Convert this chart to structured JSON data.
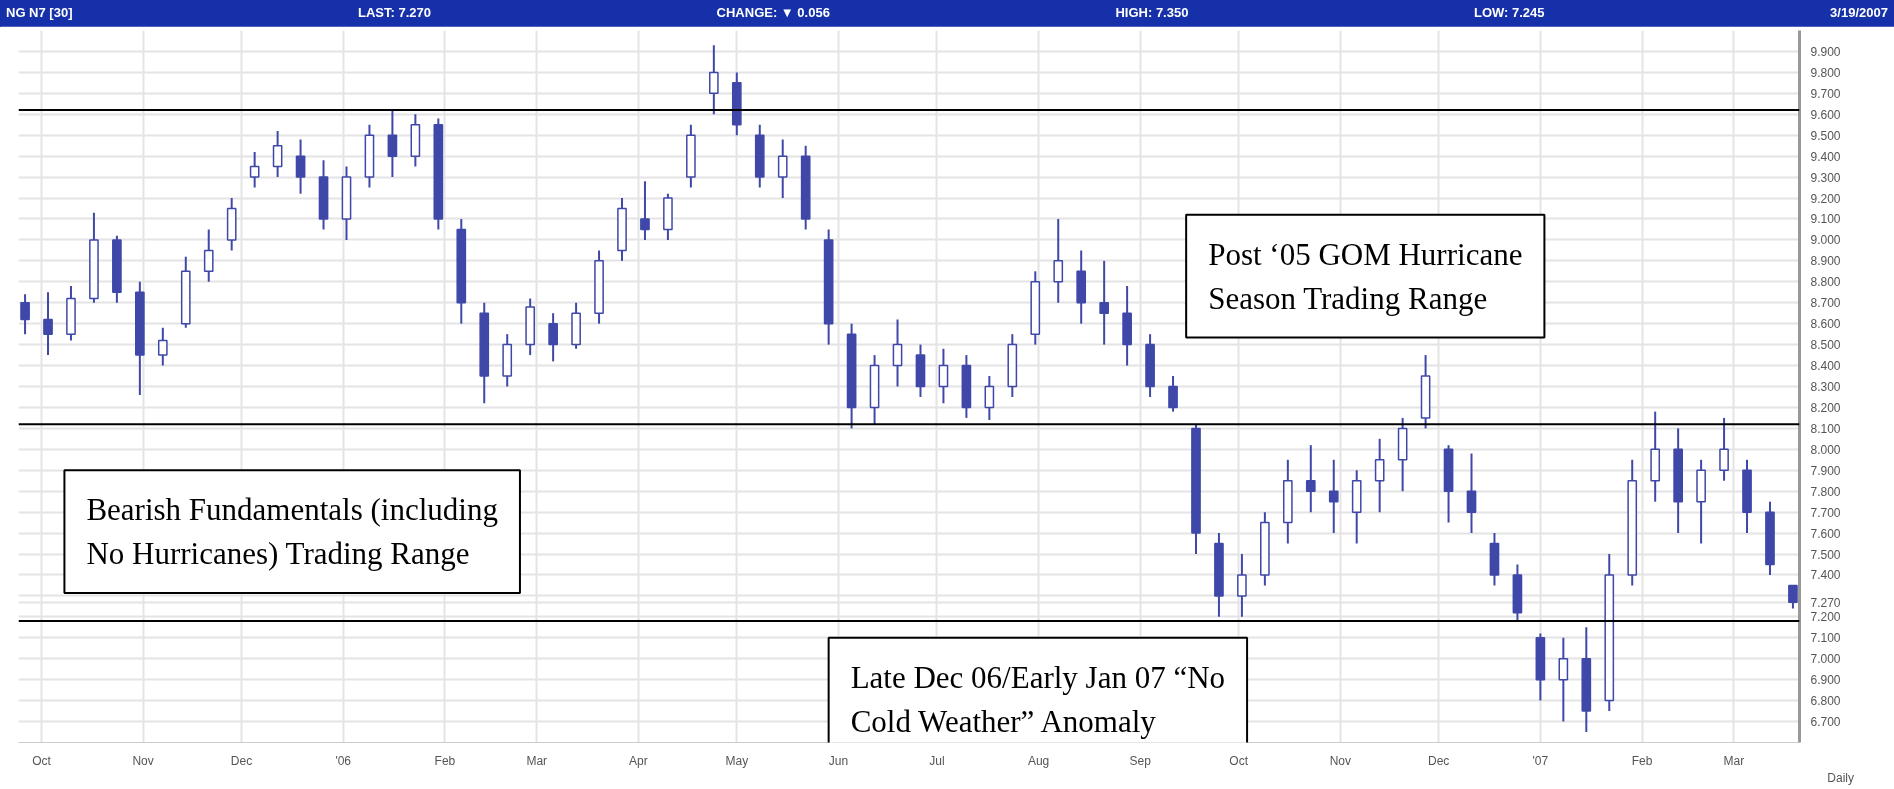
{
  "chart_data": {
    "type": "candlestick",
    "title": "NG N7 [30]",
    "annotations": [
      "LAST: 7.270",
      "CHANGE: ▼ 0.056",
      "HIGH: 7.350",
      "LOW: 7.245",
      "3/19/2007",
      "Daily",
      "Post ‘05 GOM Hurricane Season Trading Range",
      "Bearish Fundamentals (including No Hurricanes) Trading Range",
      "Late Dec 06/Early Jan 07 “No Cold Weather” Anomaly"
    ],
    "x": [
      "2005-09-26",
      "2005-10-03",
      "2005-10-10",
      "2005-10-17",
      "2005-10-24",
      "2005-10-31",
      "2005-11-07",
      "2005-11-14",
      "2005-11-21",
      "2005-11-28",
      "2005-12-05",
      "2005-12-12",
      "2005-12-19",
      "2005-12-26",
      "2006-01-02",
      "2006-01-09",
      "2006-01-16",
      "2006-01-23",
      "2006-01-30",
      "2006-02-06",
      "2006-02-13",
      "2006-02-20",
      "2006-02-27",
      "2006-03-06",
      "2006-03-13",
      "2006-03-20",
      "2006-03-27",
      "2006-04-03",
      "2006-04-10",
      "2006-04-17",
      "2006-04-24",
      "2006-05-01",
      "2006-05-08",
      "2006-05-15",
      "2006-05-22",
      "2006-05-29",
      "2006-06-05",
      "2006-06-12",
      "2006-06-19",
      "2006-06-26",
      "2006-07-03",
      "2006-07-10",
      "2006-07-17",
      "2006-07-24",
      "2006-07-31",
      "2006-08-07",
      "2006-08-14",
      "2006-08-21",
      "2006-08-28",
      "2006-09-04",
      "2006-09-11",
      "2006-09-18",
      "2006-09-25",
      "2006-10-02",
      "2006-10-09",
      "2006-10-16",
      "2006-10-23",
      "2006-10-30",
      "2006-11-06",
      "2006-11-13",
      "2006-11-20",
      "2006-11-27",
      "2006-12-04",
      "2006-12-11",
      "2006-12-18",
      "2006-12-25",
      "2007-01-01",
      "2007-01-08",
      "2007-01-15",
      "2007-01-22",
      "2007-01-29",
      "2007-02-05",
      "2007-02-12",
      "2007-02-19",
      "2007-02-26",
      "2007-03-05",
      "2007-03-12",
      "2007-03-19"
    ],
    "ohlc": [
      [
        8.7,
        8.74,
        8.55,
        8.62
      ],
      [
        8.62,
        8.75,
        8.45,
        8.55
      ],
      [
        8.55,
        8.78,
        8.52,
        8.72
      ],
      [
        8.72,
        9.13,
        8.7,
        9.0
      ],
      [
        9.0,
        9.02,
        8.7,
        8.75
      ],
      [
        8.75,
        8.8,
        8.26,
        8.45
      ],
      [
        8.45,
        8.58,
        8.4,
        8.52
      ],
      [
        8.6,
        8.92,
        8.58,
        8.85
      ],
      [
        8.85,
        9.05,
        8.8,
        8.95
      ],
      [
        9.0,
        9.2,
        8.95,
        9.15
      ],
      [
        9.3,
        9.42,
        9.25,
        9.35
      ],
      [
        9.35,
        9.52,
        9.3,
        9.45
      ],
      [
        9.4,
        9.48,
        9.22,
        9.3
      ],
      [
        9.3,
        9.38,
        9.05,
        9.1
      ],
      [
        9.1,
        9.35,
        9.0,
        9.3
      ],
      [
        9.3,
        9.55,
        9.25,
        9.5
      ],
      [
        9.5,
        9.62,
        9.3,
        9.4
      ],
      [
        9.4,
        9.6,
        9.35,
        9.55
      ],
      [
        9.55,
        9.58,
        9.05,
        9.1
      ],
      [
        9.05,
        9.1,
        8.6,
        8.7
      ],
      [
        8.65,
        8.7,
        8.22,
        8.35
      ],
      [
        8.35,
        8.55,
        8.3,
        8.5
      ],
      [
        8.5,
        8.72,
        8.45,
        8.68
      ],
      [
        8.6,
        8.65,
        8.42,
        8.5
      ],
      [
        8.5,
        8.7,
        8.48,
        8.65
      ],
      [
        8.65,
        8.95,
        8.6,
        8.9
      ],
      [
        8.95,
        9.2,
        8.9,
        9.15
      ],
      [
        9.1,
        9.28,
        9.0,
        9.05
      ],
      [
        9.05,
        9.22,
        9.0,
        9.2
      ],
      [
        9.3,
        9.55,
        9.25,
        9.5
      ],
      [
        9.7,
        9.93,
        9.6,
        9.8
      ],
      [
        9.75,
        9.8,
        9.5,
        9.55
      ],
      [
        9.5,
        9.55,
        9.25,
        9.3
      ],
      [
        9.3,
        9.48,
        9.2,
        9.4
      ],
      [
        9.4,
        9.45,
        9.05,
        9.1
      ],
      [
        9.0,
        9.05,
        8.5,
        8.6
      ],
      [
        8.55,
        8.6,
        8.1,
        8.2
      ],
      [
        8.2,
        8.45,
        8.12,
        8.4
      ],
      [
        8.4,
        8.62,
        8.3,
        8.5
      ],
      [
        8.45,
        8.5,
        8.25,
        8.3
      ],
      [
        8.3,
        8.48,
        8.22,
        8.4
      ],
      [
        8.4,
        8.45,
        8.15,
        8.2
      ],
      [
        8.2,
        8.35,
        8.14,
        8.3
      ],
      [
        8.3,
        8.55,
        8.25,
        8.5
      ],
      [
        8.55,
        8.85,
        8.5,
        8.8
      ],
      [
        8.8,
        9.1,
        8.7,
        8.9
      ],
      [
        8.85,
        8.95,
        8.6,
        8.7
      ],
      [
        8.7,
        8.9,
        8.5,
        8.65
      ],
      [
        8.65,
        8.78,
        8.4,
        8.5
      ],
      [
        8.5,
        8.55,
        8.25,
        8.3
      ],
      [
        8.3,
        8.35,
        8.18,
        8.2
      ],
      [
        8.1,
        8.12,
        7.5,
        7.6
      ],
      [
        7.55,
        7.6,
        7.2,
        7.3
      ],
      [
        7.3,
        7.5,
        7.2,
        7.4
      ],
      [
        7.4,
        7.7,
        7.35,
        7.65
      ],
      [
        7.65,
        7.95,
        7.55,
        7.85
      ],
      [
        7.85,
        8.02,
        7.7,
        7.8
      ],
      [
        7.8,
        7.95,
        7.6,
        7.75
      ],
      [
        7.7,
        7.9,
        7.55,
        7.85
      ],
      [
        7.85,
        8.05,
        7.7,
        7.95
      ],
      [
        7.95,
        8.15,
        7.8,
        8.1
      ],
      [
        8.15,
        8.45,
        8.1,
        8.35
      ],
      [
        8.0,
        8.02,
        7.65,
        7.8
      ],
      [
        7.8,
        7.98,
        7.6,
        7.7
      ],
      [
        7.55,
        7.6,
        7.35,
        7.4
      ],
      [
        7.4,
        7.45,
        7.18,
        7.22
      ],
      [
        7.1,
        7.12,
        6.8,
        6.9
      ],
      [
        6.9,
        7.1,
        6.7,
        7.0
      ],
      [
        7.0,
        7.15,
        6.65,
        6.75
      ],
      [
        6.8,
        7.5,
        6.75,
        7.4
      ],
      [
        7.4,
        7.95,
        7.35,
        7.85
      ],
      [
        7.85,
        8.18,
        7.75,
        8.0
      ],
      [
        8.0,
        8.1,
        7.6,
        7.75
      ],
      [
        7.75,
        7.95,
        7.55,
        7.9
      ],
      [
        7.9,
        8.15,
        7.85,
        8.0
      ],
      [
        7.9,
        7.95,
        7.6,
        7.7
      ],
      [
        7.7,
        7.75,
        7.4,
        7.45
      ],
      [
        7.35,
        7.35,
        7.24,
        7.27
      ]
    ],
    "color": "#3f48a8",
    "xlim": [
      "2005-09-24",
      "2007-03-21"
    ],
    "xticks": [
      {
        "value": "2005-10-01",
        "label": "Oct"
      },
      {
        "value": "2005-11-01",
        "label": "Nov"
      },
      {
        "value": "2005-12-01",
        "label": "Dec"
      },
      {
        "value": "2006-01-01",
        "label": "'06"
      },
      {
        "value": "2006-02-01",
        "label": "Feb"
      },
      {
        "value": "2006-03-01",
        "label": "Mar"
      },
      {
        "value": "2006-04-01",
        "label": "Apr"
      },
      {
        "value": "2006-05-01",
        "label": "May"
      },
      {
        "value": "2006-06-01",
        "label": "Jun"
      },
      {
        "value": "2006-07-01",
        "label": "Jul"
      },
      {
        "value": "2006-08-01",
        "label": "Aug"
      },
      {
        "value": "2006-09-01",
        "label": "Sep"
      },
      {
        "value": "2006-10-01",
        "label": "Oct"
      },
      {
        "value": "2006-11-01",
        "label": "Nov"
      },
      {
        "value": "2006-12-01",
        "label": "Dec"
      },
      {
        "value": "2007-01-01",
        "label": "'07"
      },
      {
        "value": "2007-02-01",
        "label": "Feb"
      },
      {
        "value": "2007-03-01",
        "label": "Mar"
      }
    ],
    "ylim": [
      6.6,
      10.0
    ],
    "yticks": [
      {
        "value": 6.7,
        "label": "6.700"
      },
      {
        "value": 6.8,
        "label": "6.800"
      },
      {
        "value": 6.9,
        "label": "6.900"
      },
      {
        "value": 7.0,
        "label": "7.000"
      },
      {
        "value": 7.1,
        "label": "7.100"
      },
      {
        "value": 7.2,
        "label": "7.200"
      },
      {
        "value": 7.27,
        "label": "7.270"
      },
      {
        "value": 7.3,
        "label": null
      },
      {
        "value": 7.4,
        "label": "7.400"
      },
      {
        "value": 7.5,
        "label": "7.500"
      },
      {
        "value": 7.6,
        "label": "7.600"
      },
      {
        "value": 7.7,
        "label": "7.700"
      },
      {
        "value": 7.8,
        "label": "7.800"
      },
      {
        "value": 7.9,
        "label": "7.900"
      },
      {
        "value": 8.0,
        "label": "8.000"
      },
      {
        "value": 8.1,
        "label": "8.100"
      },
      {
        "value": 8.2,
        "label": "8.200"
      },
      {
        "value": 8.3,
        "label": "8.300"
      },
      {
        "value": 8.4,
        "label": "8.400"
      },
      {
        "value": 8.5,
        "label": "8.500"
      },
      {
        "value": 8.6,
        "label": "8.600"
      },
      {
        "value": 8.7,
        "label": "8.700"
      },
      {
        "value": 8.8,
        "label": "8.800"
      },
      {
        "value": 8.9,
        "label": "8.900"
      },
      {
        "value": 9.0,
        "label": "9.000"
      },
      {
        "value": 9.1,
        "label": "9.100"
      },
      {
        "value": 9.2,
        "label": "9.200"
      },
      {
        "value": 9.3,
        "label": "9.300"
      },
      {
        "value": 9.4,
        "label": "9.400"
      },
      {
        "value": 9.5,
        "label": "9.500"
      },
      {
        "value": 9.6,
        "label": "9.600"
      },
      {
        "value": 9.7,
        "label": "9.700"
      },
      {
        "value": 9.8,
        "label": "9.800"
      },
      {
        "value": 9.9,
        "label": "9.900"
      }
    ],
    "ref_lines": [
      {
        "axis": "y",
        "value": 9.62,
        "color": "#000000"
      },
      {
        "axis": "y",
        "value": 8.12,
        "color": "#000000"
      },
      {
        "axis": "y",
        "value": 7.18,
        "color": "#000000"
      }
    ],
    "grid": true
  }
}
